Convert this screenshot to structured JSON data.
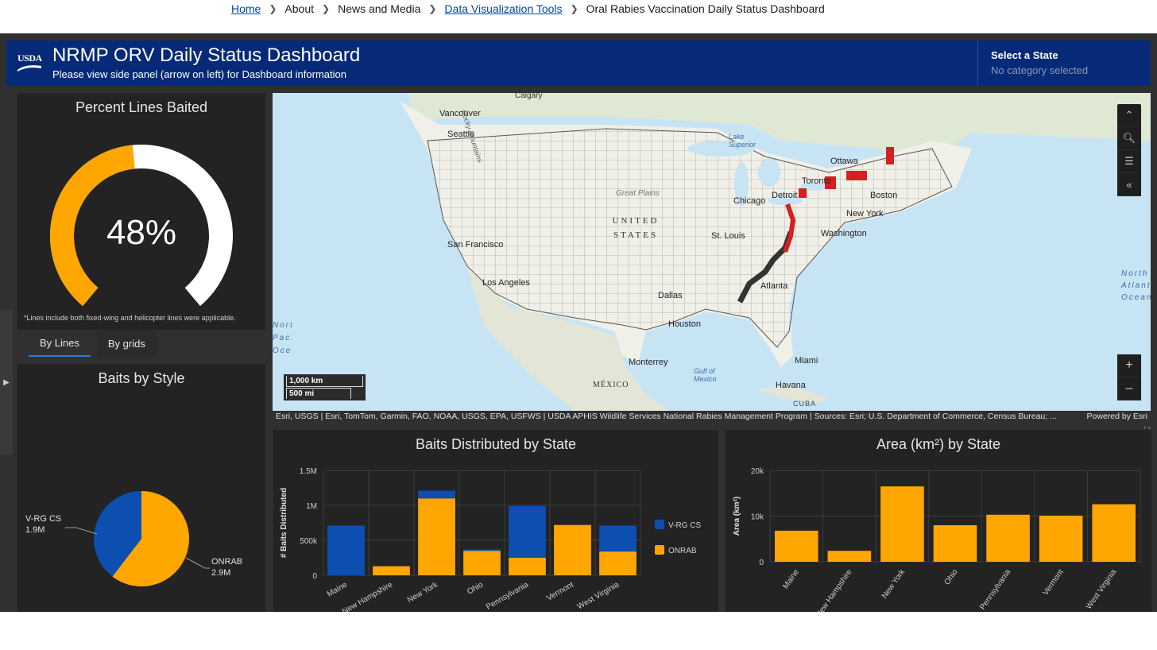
{
  "breadcrumb": {
    "items": [
      {
        "label": "Home",
        "link": true
      },
      {
        "label": "About",
        "link": false
      },
      {
        "label": "News and Media",
        "link": false
      },
      {
        "label": "Data Visualization Tools",
        "link": true
      },
      {
        "label": "Oral Rabies Vaccination Daily Status Dashboard",
        "link": false
      }
    ]
  },
  "header": {
    "logo_text": "USDA",
    "title": "NRMP ORV Daily Status Dashboard",
    "subtitle": "Please view side panel (arrow on left) for Dashboard information",
    "state_select_label": "Select a State",
    "state_select_value": "No category selected"
  },
  "gauge": {
    "title": "Percent Lines Baited",
    "value_text": "48%",
    "fraction": 0.48,
    "note": "*Lines include both fixed-wing and helicopter lines were applicable.",
    "fill_color": "#ffa600",
    "track_color": "#ffffff"
  },
  "tabs": {
    "items": [
      {
        "label": "By Lines",
        "active": true
      },
      {
        "label": "By grids",
        "active": false
      }
    ]
  },
  "map": {
    "labels": [
      "Calgary",
      "Vancouver",
      "Seattle",
      "Ottawa",
      "Lake Superior",
      "Toronto",
      "Chicago",
      "Detroit",
      "Boston",
      "New York",
      "UNITED STATES",
      "Great Plains",
      "St. Louis",
      "Washington",
      "San Francisco",
      "Los Angeles",
      "Dallas",
      "Atlanta",
      "Houston",
      "Monterrey",
      "Gulf of Mexico",
      "MÉXICO",
      "Miami",
      "Havana",
      "CUBA",
      "North Atlantic Ocean",
      "North Pacific Ocean",
      "Rocky Mountains"
    ],
    "scale_km": "1,000 km",
    "scale_mi": "500 mi",
    "tools": [
      "collapse-icon",
      "search-icon",
      "legend-icon",
      "back-icon"
    ],
    "zoom_in": "+",
    "zoom_out": "–",
    "attribution": "Esri, USGS | Esri, TomTom, Garmin, FAO, NOAA, USGS, EPA, USFWS | USDA APHIS Wildlife Services National Rabies Management Program | Sources: Esri; U.S. Department of Commerce, Census Bureau; ...",
    "powered_by": "Powered by Esri"
  },
  "colors": {
    "onrab": "#ffa600",
    "vrg": "#0c4fb0",
    "header_bg": "#062a78",
    "panel_bg": "#232323"
  },
  "chart_data": [
    {
      "type": "pie",
      "title": "Baits by Style",
      "slices": [
        {
          "label": "V-RG CS",
          "value_label": "1.9M",
          "value": 1900000
        },
        {
          "label": "ONRAB",
          "value_label": "2.9M",
          "value": 2900000
        }
      ]
    },
    {
      "type": "bar",
      "stacked": true,
      "title": "Baits Distributed by State",
      "xlabel": "",
      "ylabel": "# Baits Distributed",
      "ylim": [
        0,
        1500000
      ],
      "yticks": [
        0,
        500000,
        1000000,
        1500000
      ],
      "ytick_labels": [
        "0",
        "500k",
        "1M",
        "1.5M"
      ],
      "categories": [
        "Maine",
        "New Hampshire",
        "New York",
        "Ohio",
        "Pennsylvania",
        "Vermont",
        "West Virginia"
      ],
      "series": [
        {
          "name": "ONRAB",
          "values": [
            0,
            130000,
            1100000,
            350000,
            250000,
            720000,
            340000
          ]
        },
        {
          "name": "V-RG CS",
          "values": [
            710000,
            0,
            110000,
            20000,
            740000,
            0,
            370000
          ]
        }
      ],
      "legend": "right"
    },
    {
      "type": "bar",
      "title": "Area (km²) by State",
      "xlabel": "",
      "ylabel": "Area (km²)",
      "ylim": [
        0,
        20000
      ],
      "yticks": [
        0,
        10000,
        20000
      ],
      "ytick_labels": [
        "0",
        "10k",
        "20k"
      ],
      "categories": [
        "Maine",
        "New Hampshire",
        "New York",
        "Ohio",
        "Pennsylvania",
        "Vermont",
        "West Virginia"
      ],
      "values": [
        6800,
        2400,
        16500,
        8000,
        10300,
        10100,
        12600
      ]
    }
  ]
}
